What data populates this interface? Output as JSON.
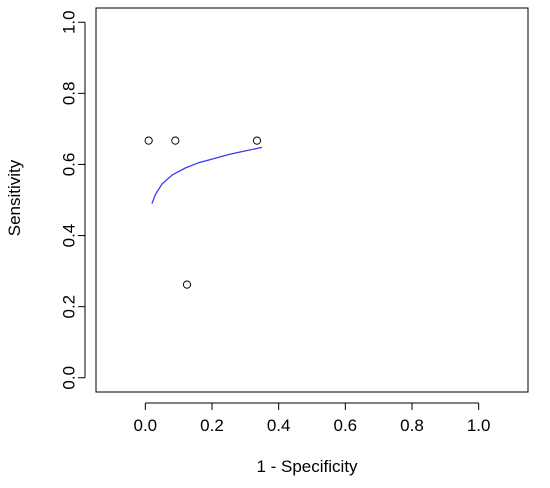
{
  "chart_data": {
    "type": "scatter",
    "xlabel": "1 - Specificity",
    "ylabel": "Sensitivity",
    "xlim": [
      -0.1,
      1.1
    ],
    "ylim": [
      0.0,
      1.0
    ],
    "x_ticks": [
      "0.0",
      "0.2",
      "0.4",
      "0.6",
      "0.8",
      "1.0"
    ],
    "x_tick_values": [
      0.0,
      0.2,
      0.4,
      0.6,
      0.8,
      1.0
    ],
    "y_ticks": [
      "0.0",
      "0.2",
      "0.4",
      "0.6",
      "0.8",
      "1.0"
    ],
    "y_tick_values": [
      0.0,
      0.2,
      0.4,
      0.6,
      0.8,
      1.0
    ],
    "grid": false,
    "points": [
      {
        "x": 0.01,
        "y": 0.667
      },
      {
        "x": 0.09,
        "y": 0.667
      },
      {
        "x": 0.335,
        "y": 0.667
      },
      {
        "x": 0.125,
        "y": 0.262
      }
    ],
    "curve": {
      "color": "#3a3af0",
      "x": [
        0.02,
        0.03,
        0.05,
        0.08,
        0.12,
        0.16,
        0.2,
        0.25,
        0.3,
        0.35
      ],
      "y": [
        0.49,
        0.515,
        0.545,
        0.57,
        0.59,
        0.605,
        0.615,
        0.628,
        0.638,
        0.648
      ]
    },
    "colors": {
      "axis": "#000000",
      "points": "#000000",
      "curve": "#3a3af0"
    }
  }
}
